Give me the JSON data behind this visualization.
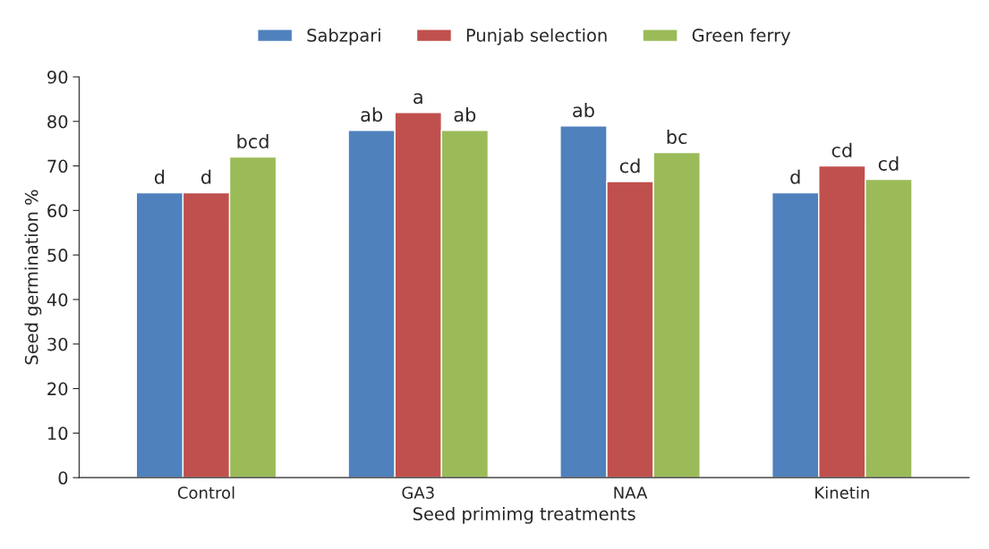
{
  "chart_data": {
    "type": "bar",
    "xlabel": "Seed primimg treatments",
    "ylabel": "Seed germination %",
    "categories": [
      "Control",
      "GA3",
      "NAA",
      "Kinetin"
    ],
    "series": [
      {
        "name": "Sabzpari",
        "color": "#4f81bd",
        "values": [
          64,
          78,
          79,
          64
        ],
        "value_labels": [
          "d",
          "ab",
          "ab",
          "d"
        ]
      },
      {
        "name": "Punjab selection",
        "color": "#c0504d",
        "values": [
          64,
          82,
          66.5,
          70
        ],
        "value_labels": [
          "d",
          "a",
          "cd",
          "cd"
        ]
      },
      {
        "name": "Green ferry",
        "color": "#9bbb59",
        "values": [
          72,
          78,
          73,
          67
        ],
        "value_labels": [
          "bcd",
          "ab",
          "bc",
          "cd"
        ]
      }
    ],
    "ylim": [
      0,
      90
    ],
    "yticks": [
      0,
      10,
      20,
      30,
      40,
      50,
      60,
      70,
      80,
      90
    ],
    "grid": false,
    "legend": "top"
  }
}
